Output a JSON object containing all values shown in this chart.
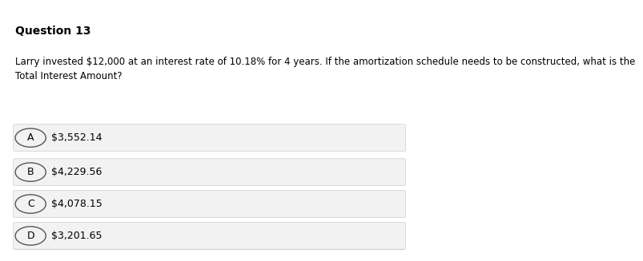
{
  "title": "Question 13",
  "question": "Larry invested $12,000 at an interest rate of 10.18% for 4 years. If the amortization schedule needs to be constructed, what is the\nTotal Interest Amount?",
  "options": [
    {
      "label": "A",
      "text": "$3,552.14"
    },
    {
      "label": "B",
      "text": "$4,229.56"
    },
    {
      "label": "C",
      "text": "$4,078.15"
    },
    {
      "label": "D",
      "text": "$3,201.65"
    }
  ],
  "bg_color": "#ffffff",
  "option_bg_color": "#f2f2f2",
  "option_border_color": "#d0d0d0",
  "title_fontsize": 10,
  "question_fontsize": 8.5,
  "option_fontsize": 9,
  "text_color": "#000000",
  "circle_edge_color": "#555555",
  "bottom_line_color": "#cccccc"
}
